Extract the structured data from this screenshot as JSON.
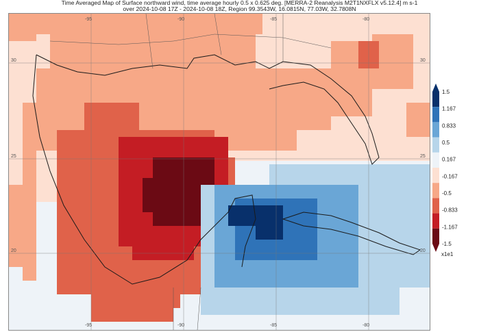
{
  "title": {
    "line1": "Time Averaged Map of Surface northward wind, time average hourly 0.5 x 0.625 deg. [MERRA-2 Reanalysis M2T1NXFLX v5.12.4] m s-1",
    "line2": "over 2024-10-08 17Z - 2024-10-08 18Z, Region 99.3543W, 16.0815N, 77.03W, 32.7808N"
  },
  "map": {
    "lon_labels_top": [
      "-95",
      "-90",
      "-85",
      "-80"
    ],
    "lon_labels_bottom": [
      "-95",
      "-90",
      "-85",
      "-80"
    ],
    "lat_labels_left": [
      "30",
      "25",
      "20"
    ],
    "lat_labels_right": [
      "30",
      "25",
      "20"
    ]
  },
  "colorbar": {
    "ticks": [
      "1.5",
      "1.167",
      "0.833",
      "0.5",
      "0.167",
      "-0.167",
      "-0.5",
      "-0.833",
      "-1.167",
      "-1.5"
    ],
    "unit_label": "x1e1",
    "colors": [
      "#08306b",
      "#2f73b8",
      "#6aa6d6",
      "#b7d5ea",
      "#eef3f8",
      "#fde0d2",
      "#f7a887",
      "#e0624a",
      "#c41d24",
      "#6b0a14"
    ]
  }
}
